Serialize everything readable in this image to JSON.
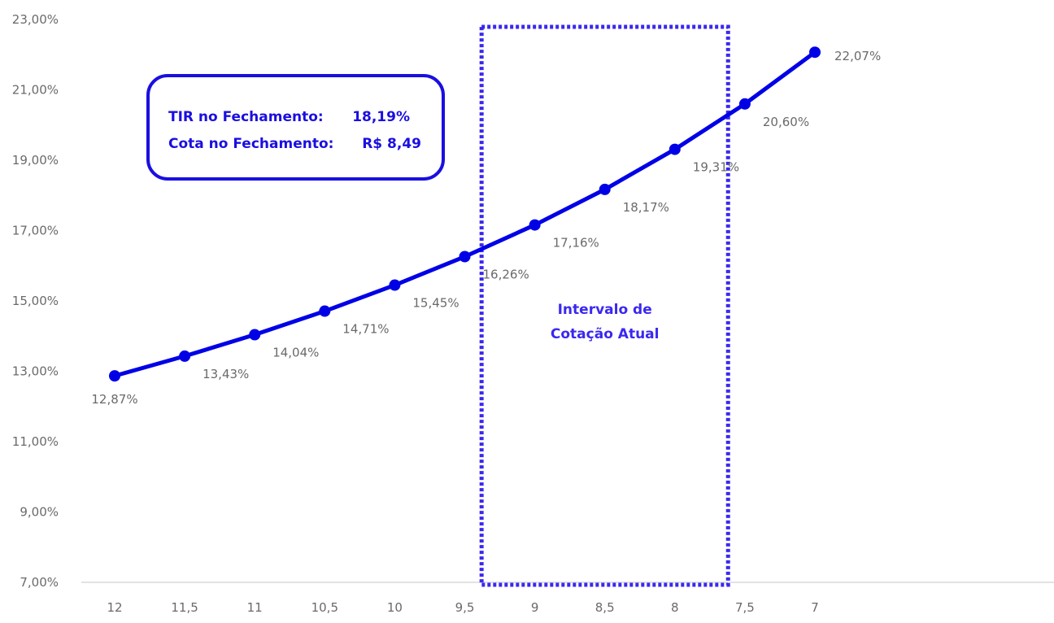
{
  "chart_data": {
    "type": "line",
    "title": "",
    "xlabel": "",
    "ylabel": "",
    "categories": [
      "12",
      "11,5",
      "11",
      "10,5",
      "10",
      "9,5",
      "9",
      "8,5",
      "8",
      "7,5",
      "7"
    ],
    "series": [
      {
        "values": [
          12.87,
          13.43,
          14.04,
          14.71,
          15.45,
          16.26,
          17.16,
          18.17,
          19.31,
          20.6,
          22.07
        ],
        "labels": [
          "12,87%",
          "13,43%",
          "14,04%",
          "14,71%",
          "15,45%",
          "16,26%",
          "17,16%",
          "18,17%",
          "19,31%",
          "20,60%",
          "22,07%"
        ],
        "color": "#0000e6"
      }
    ],
    "ylim": [
      7,
      23
    ],
    "y_ticks": [
      7,
      9,
      11,
      13,
      15,
      17,
      19,
      21,
      23
    ],
    "y_tick_labels": [
      "7,00%",
      "9,00%",
      "11,00%",
      "13,00%",
      "15,00%",
      "17,00%",
      "19,00%",
      "21,00%",
      "23,00%"
    ],
    "grid": false,
    "legend": "none",
    "highlight_range": {
      "from_category": "9,5",
      "to_category": "7,5",
      "label_lines": [
        "Intervalo de",
        "Cotação Atual"
      ],
      "color": "#3a28f0"
    },
    "info_box": {
      "lines": [
        {
          "label": "TIR no Fechamento:",
          "value": "18,19%"
        },
        {
          "label": "Cota no Fechamento:",
          "value": "R$ 8,49"
        }
      ],
      "color": "#1a0fe0"
    }
  },
  "colors": {
    "line": "#0000e6",
    "axis": "#d9d9d9",
    "tick_text": "#6a6a6a",
    "accent": "#3a28f0"
  }
}
